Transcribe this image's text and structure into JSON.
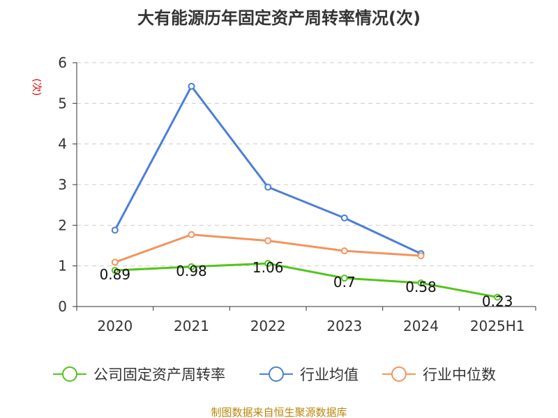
{
  "chart_data": {
    "type": "line",
    "title": "大有能源历年固定资产周转率情况(次)",
    "ylabel": "(次)",
    "categories": [
      "2020",
      "2021",
      "2022",
      "2023",
      "2024",
      "2025H1"
    ],
    "ylim": [
      0,
      6
    ],
    "yticks": [
      0,
      1,
      2,
      3,
      4,
      5,
      6
    ],
    "grid": true,
    "legend_position": "bottom",
    "series": [
      {
        "name": "公司固定资产周转率",
        "color": "#52c41a",
        "values": [
          0.89,
          0.98,
          1.06,
          0.7,
          0.58,
          0.23
        ],
        "labels": [
          "0.89",
          "0.98",
          "1.06",
          "0.7",
          "0.58",
          "0.23"
        ]
      },
      {
        "name": "行业均值",
        "color": "#4a7fd8",
        "values": [
          1.88,
          5.42,
          2.94,
          2.18,
          1.3,
          null
        ]
      },
      {
        "name": "行业中位数",
        "color": "#f4935c",
        "values": [
          1.09,
          1.77,
          1.62,
          1.37,
          1.25,
          null
        ]
      }
    ],
    "source": "制图数据来自恒生聚源数据库"
  }
}
